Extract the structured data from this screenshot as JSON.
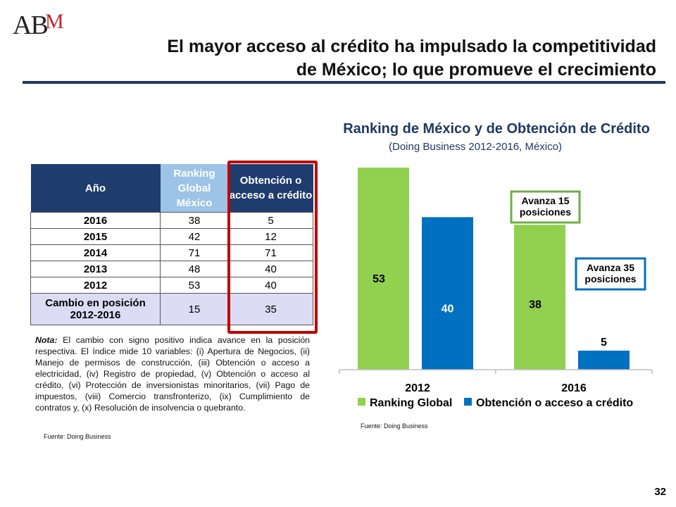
{
  "logo": {
    "part1": "AB",
    "part2": "M"
  },
  "title": {
    "line1": "El mayor acceso al crédito ha impulsado la competitividad",
    "line2": "de México; lo que promueve el crecimiento"
  },
  "table": {
    "headers": [
      "Año",
      "Ranking Global México",
      "Obtención o acceso a crédito"
    ],
    "rows": [
      {
        "year": "2016",
        "ranking": "38",
        "credito": "5"
      },
      {
        "year": "2015",
        "ranking": "42",
        "credito": "12"
      },
      {
        "year": "2014",
        "ranking": "71",
        "credito": "71"
      },
      {
        "year": "2013",
        "ranking": "48",
        "credito": "40"
      },
      {
        "year": "2012",
        "ranking": "53",
        "credito": "40"
      }
    ],
    "change_row": {
      "label": "Cambio en posición 2012-2016",
      "ranking": "15",
      "credito": "35"
    }
  },
  "note": {
    "label": "Nota:",
    "text": " El cambio con signo positivo indica avance en la posición respectiva. El índice mide 10 variables: (i) Apertura de Negocios, (ii) Manejo de permisos de construcción, (iii) Obtención o acceso a electricidad, (iv) Registro de propiedad, (v) Obtención o acceso al crédito, (vi) Protección de inversionistas minoritarios, (vii) Pago de impuestos, (viii) Comercio transfronterizo, (ix) Cumplimiento de contratos y, (x) Resolución de insolvencia o quebranto."
  },
  "source_left": "Fuente: Doing Business",
  "source_right": "Fuente: Doing Business",
  "page_number": "32",
  "chart_data": {
    "type": "bar",
    "title": "Ranking de México y de Obtención de Crédito",
    "subtitle": "(Doing Business 2012-2016, México)",
    "categories": [
      "2012",
      "2016"
    ],
    "series": [
      {
        "name": "Ranking Global",
        "values": [
          53,
          38
        ],
        "color": "#92d050"
      },
      {
        "name": "Obtención o acceso a crédito",
        "values": [
          40,
          5
        ],
        "color": "#0070c0"
      }
    ],
    "ylim": [
      0,
      53
    ],
    "annotations": [
      {
        "text": "Avanza 15 posiciones",
        "series": "Ranking Global",
        "border_color": "#70ad47"
      },
      {
        "text": "Avanza 35 posiciones",
        "series": "Obtención o acceso a crédito",
        "border_color": "#0070c0"
      }
    ],
    "legend_position": "bottom"
  }
}
